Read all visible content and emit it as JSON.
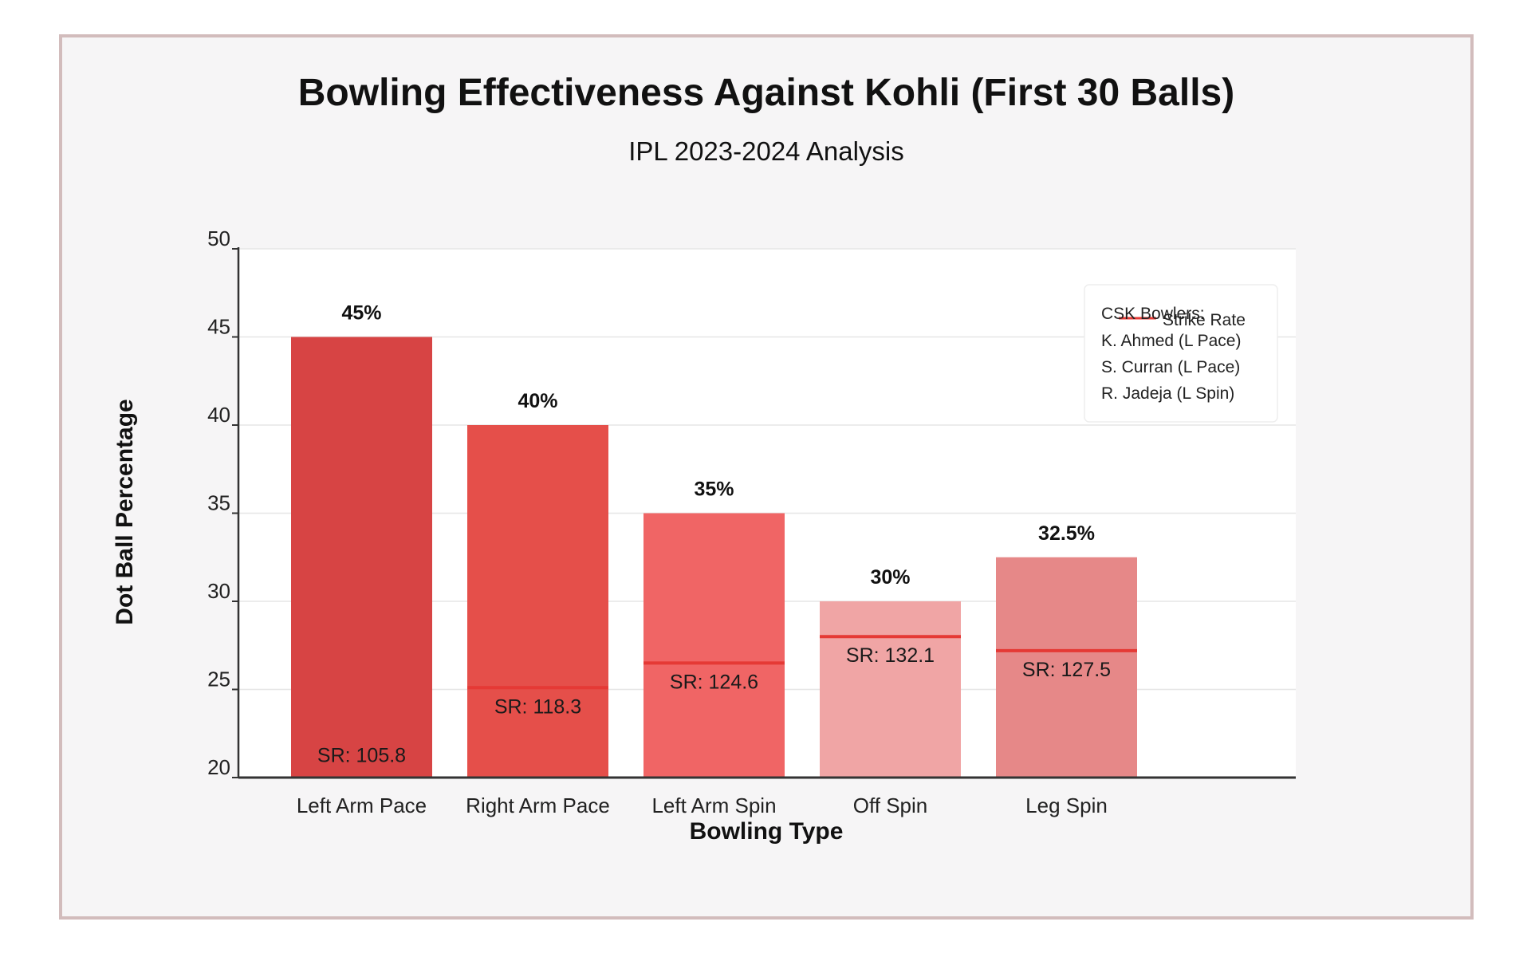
{
  "chart_data": {
    "type": "bar",
    "title": "Bowling Effectiveness Against Kohli (First 30 Balls)",
    "subtitle": "IPL 2023-2024 Analysis",
    "xlabel": "Bowling Type",
    "ylabel": "Dot Ball Percentage",
    "ylim": [
      20,
      50
    ],
    "yticks": [
      20,
      25,
      30,
      35,
      40,
      45,
      50
    ],
    "grid": true,
    "categories": [
      "Left Arm Pace",
      "Right Arm Pace",
      "Left Arm Spin",
      "Off Spin",
      "Leg Spin"
    ],
    "series": [
      {
        "values": [
          45,
          40,
          35,
          30,
          32.5
        ],
        "value_labels": [
          "45%",
          "40%",
          "35%",
          "30%",
          "32.5%"
        ],
        "colors": [
          "#d74444",
          "#e54f4a",
          "#f06565",
          "#f0a5a5",
          "#e68888"
        ]
      },
      {
        "name": "Strike Rate",
        "values": [
          105.8,
          118.3,
          124.6,
          132.1,
          127.5
        ],
        "value_labels": [
          "SR: 105.8",
          "SR: 118.3",
          "SR: 124.6",
          "SR: 132.1",
          "SR: 127.5"
        ],
        "marker_levels": [
          20,
          25.1,
          26.5,
          28,
          27.2
        ],
        "color": "#e53935"
      }
    ],
    "legend": {
      "placement": "top-right",
      "title": "CSK Bowlers:",
      "items": [
        "K. Ahmed (L Pace)",
        "S. Curran (L Pace)",
        "R. Jadeja (L Spin)"
      ]
    }
  }
}
